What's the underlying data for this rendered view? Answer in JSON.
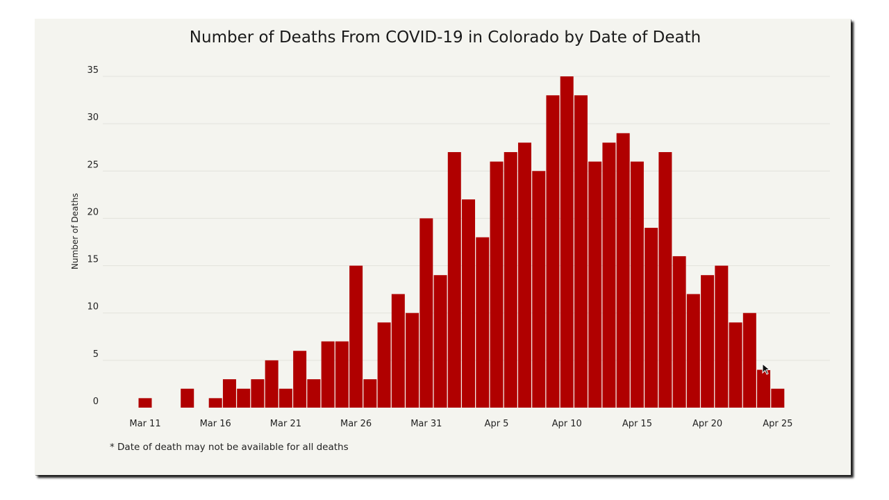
{
  "chart_data": {
    "type": "bar",
    "title": "Number of Deaths From COVID-19 in Colorado by Date of Death",
    "xlabel": "",
    "ylabel": "Number of Deaths",
    "ylim": [
      0,
      35
    ],
    "yticks": [
      0,
      5,
      10,
      15,
      20,
      25,
      30,
      35
    ],
    "grid": true,
    "note": "* Date of death may not be available for all deaths",
    "start_day_index": 10,
    "x_ticks": [
      {
        "label": "Mar 11",
        "day_index": 10
      },
      {
        "label": "Mar 16",
        "day_index": 15
      },
      {
        "label": "Mar 21",
        "day_index": 20
      },
      {
        "label": "Mar 26",
        "day_index": 25
      },
      {
        "label": "Mar 31",
        "day_index": 30
      },
      {
        "label": "Apr 5",
        "day_index": 35
      },
      {
        "label": "Apr 10",
        "day_index": 40
      },
      {
        "label": "Apr 15",
        "day_index": 45
      },
      {
        "label": "Apr 20",
        "day_index": 50
      },
      {
        "label": "Apr 25",
        "day_index": 55
      }
    ],
    "series": [
      {
        "name": "Number of Deaths",
        "color": "#b00000",
        "values": [
          1,
          0,
          0,
          2,
          0,
          1,
          3,
          2,
          3,
          5,
          2,
          6,
          3,
          7,
          7,
          15,
          3,
          9,
          12,
          10,
          20,
          14,
          27,
          22,
          18,
          26,
          27,
          28,
          25,
          33,
          35,
          33,
          26,
          28,
          29,
          26,
          19,
          27,
          16,
          12,
          14,
          15,
          9,
          10,
          4,
          2
        ]
      }
    ]
  }
}
